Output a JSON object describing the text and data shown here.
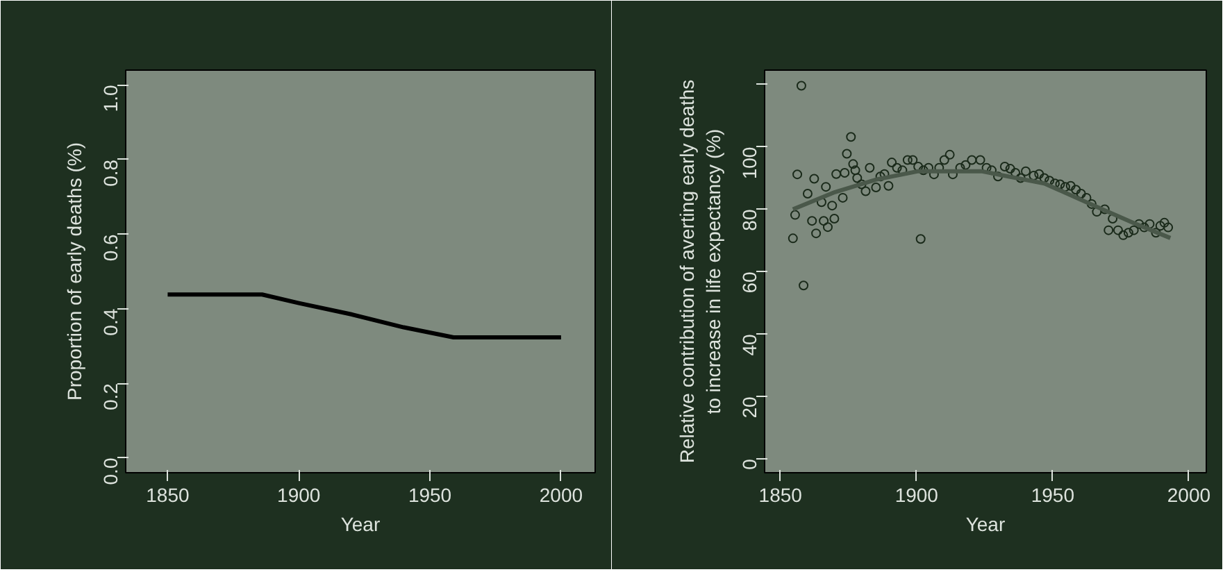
{
  "chart_data": [
    {
      "type": "line",
      "xlabel": "Year",
      "ylabel": "Proportion of early deaths (%)",
      "xlim": [
        1834,
        2013
      ],
      "xticks": [
        1850,
        1900,
        1950,
        2000
      ],
      "ylim": [
        -0.04,
        1.04
      ],
      "yticks": [
        {
          "value": 0,
          "label": "0.0"
        },
        {
          "value": 0.2,
          "label": "0.2"
        },
        {
          "value": 0.4,
          "label": "0.4"
        },
        {
          "value": 0.6,
          "label": "0.6"
        },
        {
          "value": 0.8,
          "label": "0.8"
        },
        {
          "value": 1.0,
          "label": "1.0"
        }
      ],
      "series": [
        {
          "color": "#000000",
          "x": [
            1850,
            1886,
            1900,
            1920,
            1940,
            1959,
            1980,
            2000
          ],
          "values": [
            0.438,
            0.438,
            0.415,
            0.385,
            0.35,
            0.323,
            0.323,
            0.323
          ]
        }
      ],
      "grid": false
    },
    {
      "type": "scatter",
      "xlabel": "Year",
      "ylabel": "Relative contribution of averting early deaths\nto increase in life expectancy (%)",
      "xlim": [
        1844.2,
        2006.4
      ],
      "xticks": [
        1850,
        1900,
        1950,
        2000
      ],
      "ylim": [
        -4.4,
        124.6
      ],
      "yticks": [
        0,
        20,
        40,
        60,
        80,
        100,
        {
          "value": 120,
          "label": null
        }
      ],
      "grid": false,
      "series": [
        {
          "type": "scatter",
          "marker": "circle",
          "color": "#1a2a1a",
          "x": [
            1857.7,
            1858.5,
            1901.5,
            1854.6,
            1855.4,
            1856.2,
            1860,
            1861.6,
            1862.4,
            1863.1,
            1865.1,
            1865.9,
            1866.7,
            1867.4,
            1869,
            1869.8,
            1870.5,
            1872.9,
            1873.6,
            1874.4,
            1875.9,
            1876.7,
            1877.5,
            1878.2,
            1879.8,
            1881.3,
            1882.8,
            1885.1,
            1886.7,
            1888.2,
            1889.7,
            1890.9,
            1892.8,
            1894.8,
            1896.7,
            1898.6,
            1900.6,
            1902.5,
            1904.4,
            1906.4,
            1908.3,
            1910.2,
            1912.2,
            1913.3,
            1916,
            1918,
            1920.3,
            1923.4,
            1925.7,
            1927.6,
            1929.9,
            1932.4,
            1934.4,
            1936.3,
            1938.2,
            1940.1,
            1943,
            1945,
            1946.9,
            1948.8,
            1950.8,
            1952.7,
            1954.6,
            1956.6,
            1958.5,
            1960.4,
            1962.4,
            1964.3,
            1966.2,
            1969.1,
            1970.5,
            1972,
            1974,
            1975.9,
            1977.8,
            1979.8,
            1981.7,
            1983.6,
            1985.6,
            1987.9,
            1989.5,
            1991,
            1992.4
          ],
          "values": [
            119.6,
            55.6,
            70.5,
            70.7,
            78.2,
            91.2,
            85,
            76.3,
            89.8,
            72.3,
            82.3,
            76.3,
            87.2,
            74.3,
            81.2,
            77,
            91.3,
            83.7,
            91.7,
            97.8,
            103.2,
            94.5,
            92.5,
            90,
            88,
            85.8,
            93.3,
            87,
            90.5,
            91.3,
            87.5,
            95,
            93.3,
            92.5,
            95.8,
            95.8,
            93.7,
            92.5,
            93.3,
            91.2,
            93.3,
            95.8,
            97.5,
            91.2,
            93.3,
            94.2,
            95.8,
            95.8,
            93.3,
            92.5,
            90.5,
            93.7,
            93,
            91.7,
            90,
            92.2,
            90.8,
            91.3,
            90,
            89.2,
            88.3,
            88,
            87.2,
            87.5,
            86.3,
            85,
            83.7,
            81.7,
            79.2,
            80,
            73.3,
            77,
            73.3,
            71.7,
            72.5,
            73.3,
            75.3,
            74.2,
            75.3,
            72.5,
            74.7,
            75.7,
            74.2
          ]
        },
        {
          "type": "line",
          "marker": "none",
          "color": "#4a584a",
          "x": [
            1854.6,
            1870,
            1885,
            1900.6,
            1923.8,
            1946.9,
            1966.2,
            1980,
            1993.2
          ],
          "values": [
            80,
            85.5,
            89.5,
            92.2,
            92.2,
            88.3,
            80.8,
            75.5,
            70.8
          ]
        }
      ]
    }
  ]
}
